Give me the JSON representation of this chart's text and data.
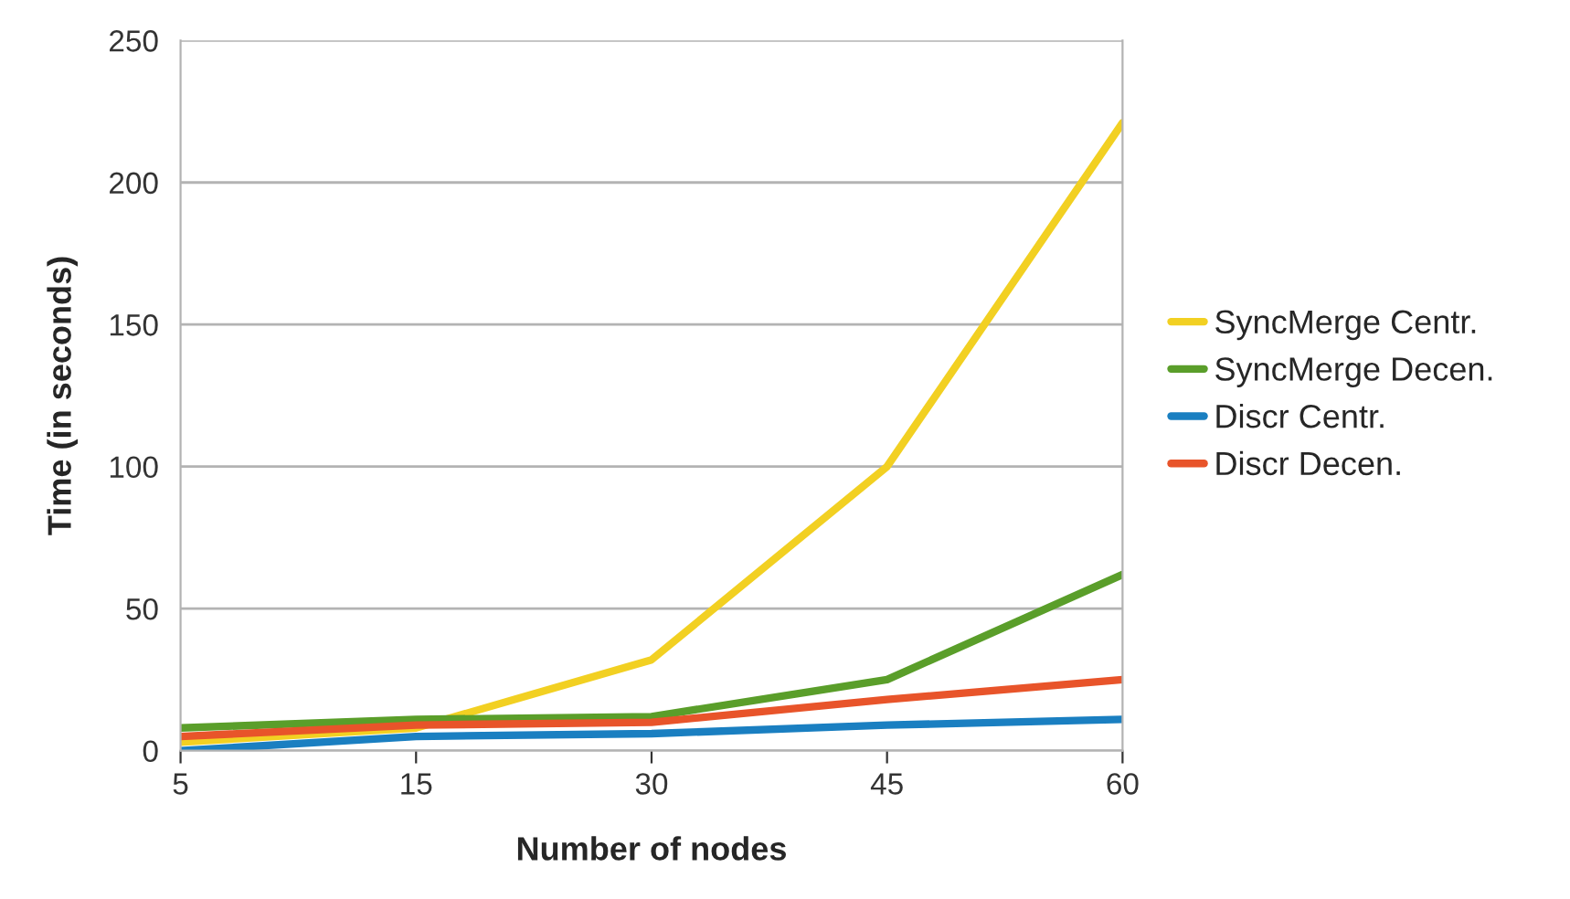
{
  "chart_data": {
    "type": "line",
    "xlabel": "Number of nodes",
    "ylabel": "Time (in seconds)",
    "categories": [
      "5",
      "15",
      "30",
      "45",
      "60"
    ],
    "series": [
      {
        "name": "SyncMerge Centr.",
        "color": "#f2d022",
        "values": [
          3,
          8,
          32,
          100,
          221
        ]
      },
      {
        "name": "SyncMerge Decen.",
        "color": "#5a9e2a",
        "values": [
          8,
          11,
          12,
          25,
          62
        ]
      },
      {
        "name": "Discr Centr.",
        "color": "#1a7fc1",
        "values": [
          0,
          5,
          6,
          9,
          11
        ]
      },
      {
        "name": "Discr Decen.",
        "color": "#e8542a",
        "values": [
          5,
          9,
          10,
          18,
          25
        ]
      }
    ],
    "ylim": [
      0,
      250
    ],
    "yticks": [
      0,
      50,
      100,
      150,
      200,
      250
    ],
    "grid": "y",
    "legend": "right",
    "marker": "none",
    "line_style": "solid"
  }
}
